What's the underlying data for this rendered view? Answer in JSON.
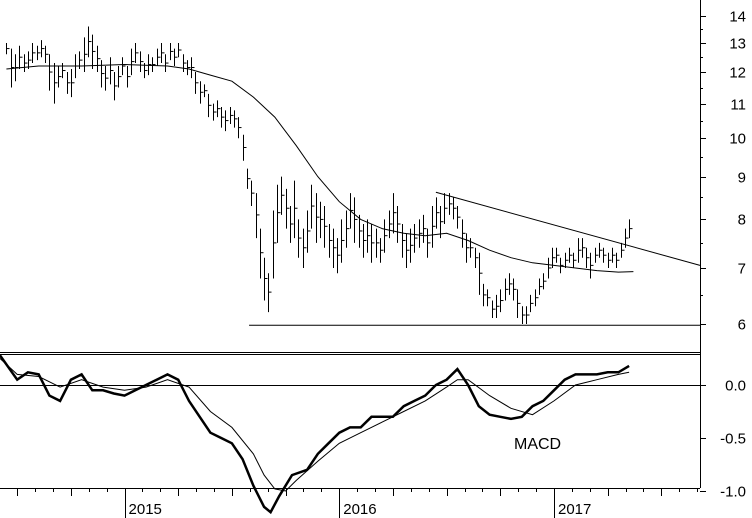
{
  "chart_data": [
    {
      "type": "ohlc",
      "panel": "price",
      "scale": "log",
      "ylim": [
        5.6,
        15
      ],
      "yticks": [
        6,
        7,
        8,
        9,
        10,
        11,
        12,
        13,
        14
      ],
      "x_labels": [
        "2015",
        "2016",
        "2017"
      ],
      "x_range": [
        2014.42,
        2017.68
      ],
      "bars": [
        [
          2014.45,
          12.6,
          13.0
        ],
        [
          2014.47,
          11.5,
          12.8
        ],
        [
          2014.49,
          11.7,
          12.6
        ],
        [
          2014.51,
          12.1,
          12.9
        ],
        [
          2014.53,
          12.0,
          12.6
        ],
        [
          2014.55,
          12.1,
          12.7
        ],
        [
          2014.57,
          12.3,
          13.0
        ],
        [
          2014.59,
          12.4,
          12.9
        ],
        [
          2014.61,
          12.5,
          13.1
        ],
        [
          2014.63,
          12.3,
          12.9
        ],
        [
          2014.65,
          11.4,
          12.6
        ],
        [
          2014.67,
          11.0,
          12.3
        ],
        [
          2014.69,
          11.5,
          12.2
        ],
        [
          2014.71,
          11.8,
          12.3
        ],
        [
          2014.73,
          11.3,
          12.0
        ],
        [
          2014.75,
          11.2,
          12.1
        ],
        [
          2014.77,
          11.8,
          12.6
        ],
        [
          2014.79,
          12.1,
          12.7
        ],
        [
          2014.81,
          12.0,
          13.2
        ],
        [
          2014.83,
          12.5,
          13.6
        ],
        [
          2014.85,
          12.1,
          13.3
        ],
        [
          2014.87,
          12.0,
          12.9
        ],
        [
          2014.89,
          11.5,
          12.4
        ],
        [
          2014.91,
          11.4,
          12.2
        ],
        [
          2014.93,
          11.6,
          12.5
        ],
        [
          2014.95,
          11.1,
          12.0
        ],
        [
          2014.97,
          11.5,
          12.2
        ],
        [
          2014.99,
          11.9,
          12.5
        ],
        [
          2015.01,
          11.5,
          12.2
        ],
        [
          2015.03,
          11.9,
          12.8
        ],
        [
          2015.05,
          12.3,
          13.0
        ],
        [
          2015.07,
          12.0,
          12.7
        ],
        [
          2015.09,
          11.8,
          12.3
        ],
        [
          2015.11,
          11.9,
          12.6
        ],
        [
          2015.13,
          12.0,
          12.5
        ],
        [
          2015.15,
          12.2,
          12.8
        ],
        [
          2015.17,
          12.3,
          13.0
        ],
        [
          2015.19,
          12.0,
          12.6
        ],
        [
          2015.21,
          12.4,
          13.0
        ],
        [
          2015.23,
          12.2,
          12.8
        ],
        [
          2015.25,
          12.5,
          13.0
        ],
        [
          2015.27,
          12.0,
          12.6
        ],
        [
          2015.29,
          11.9,
          12.4
        ],
        [
          2015.31,
          11.8,
          12.5
        ],
        [
          2015.33,
          11.3,
          12.0
        ],
        [
          2015.35,
          11.0,
          11.7
        ],
        [
          2015.37,
          11.2,
          11.6
        ],
        [
          2015.39,
          10.6,
          11.3
        ],
        [
          2015.41,
          10.5,
          11.0
        ],
        [
          2015.43,
          10.6,
          11.1
        ],
        [
          2015.45,
          10.3,
          10.9
        ],
        [
          2015.47,
          10.2,
          10.8
        ],
        [
          2015.49,
          10.4,
          10.9
        ],
        [
          2015.51,
          10.3,
          10.8
        ],
        [
          2015.53,
          10.0,
          10.6
        ],
        [
          2015.55,
          9.4,
          10.1
        ],
        [
          2015.57,
          8.7,
          9.2
        ],
        [
          2015.59,
          8.3,
          8.9
        ],
        [
          2015.61,
          7.6,
          8.6
        ],
        [
          2015.63,
          6.8,
          7.8
        ],
        [
          2015.65,
          6.4,
          7.2
        ],
        [
          2015.67,
          6.2,
          6.9
        ],
        [
          2015.69,
          6.8,
          8.2
        ],
        [
          2015.71,
          7.5,
          8.8
        ],
        [
          2015.73,
          8.1,
          9.0
        ],
        [
          2015.75,
          7.8,
          8.7
        ],
        [
          2015.77,
          7.5,
          8.3
        ],
        [
          2015.79,
          7.6,
          8.9
        ],
        [
          2015.81,
          7.2,
          8.0
        ],
        [
          2015.83,
          7.0,
          7.8
        ],
        [
          2015.85,
          7.3,
          8.2
        ],
        [
          2015.87,
          7.8,
          8.8
        ],
        [
          2015.89,
          7.5,
          8.6
        ],
        [
          2015.91,
          7.6,
          8.4
        ],
        [
          2015.93,
          7.4,
          8.3
        ],
        [
          2015.95,
          7.2,
          7.9
        ],
        [
          2015.97,
          7.0,
          7.8
        ],
        [
          2015.99,
          6.9,
          7.6
        ],
        [
          2016.01,
          7.1,
          8.0
        ],
        [
          2016.03,
          7.4,
          8.2
        ],
        [
          2016.05,
          7.8,
          8.6
        ],
        [
          2016.07,
          7.5,
          8.5
        ],
        [
          2016.09,
          7.4,
          8.1
        ],
        [
          2016.11,
          7.2,
          7.9
        ],
        [
          2016.13,
          7.3,
          8.0
        ],
        [
          2016.15,
          7.1,
          7.9
        ],
        [
          2016.17,
          7.2,
          7.8
        ],
        [
          2016.19,
          7.1,
          7.6
        ],
        [
          2016.21,
          7.3,
          8.0
        ],
        [
          2016.23,
          7.6,
          8.2
        ],
        [
          2016.25,
          7.7,
          8.6
        ],
        [
          2016.27,
          7.5,
          8.3
        ],
        [
          2016.29,
          7.2,
          7.9
        ],
        [
          2016.31,
          7.0,
          7.7
        ],
        [
          2016.33,
          7.1,
          7.8
        ],
        [
          2016.35,
          7.3,
          7.9
        ],
        [
          2016.37,
          7.4,
          8.0
        ],
        [
          2016.39,
          7.5,
          8.1
        ],
        [
          2016.41,
          7.2,
          7.8
        ],
        [
          2016.43,
          7.4,
          8.3
        ],
        [
          2016.45,
          7.8,
          8.5
        ],
        [
          2016.47,
          7.6,
          8.3
        ],
        [
          2016.49,
          7.9,
          8.6
        ],
        [
          2016.51,
          8.1,
          8.6
        ],
        [
          2016.53,
          8.0,
          8.5
        ],
        [
          2016.55,
          7.8,
          8.3
        ],
        [
          2016.57,
          7.4,
          8.0
        ],
        [
          2016.59,
          7.1,
          7.7
        ],
        [
          2016.61,
          7.2,
          7.6
        ],
        [
          2016.63,
          7.0,
          7.4
        ],
        [
          2016.65,
          6.5,
          7.3
        ],
        [
          2016.67,
          6.3,
          6.7
        ],
        [
          2016.69,
          6.3,
          6.6
        ],
        [
          2016.71,
          6.1,
          6.4
        ],
        [
          2016.73,
          6.1,
          6.5
        ],
        [
          2016.75,
          6.2,
          6.6
        ],
        [
          2016.77,
          6.4,
          6.8
        ],
        [
          2016.79,
          6.5,
          6.9
        ],
        [
          2016.81,
          6.4,
          6.8
        ],
        [
          2016.83,
          6.1,
          6.6
        ],
        [
          2016.85,
          6.0,
          6.3
        ],
        [
          2016.87,
          6.0,
          6.3
        ],
        [
          2016.89,
          6.2,
          6.5
        ],
        [
          2016.91,
          6.3,
          6.6
        ],
        [
          2016.93,
          6.5,
          6.8
        ],
        [
          2016.95,
          6.6,
          6.9
        ],
        [
          2016.97,
          6.8,
          7.2
        ],
        [
          2016.99,
          7.0,
          7.4
        ],
        [
          2017.01,
          7.1,
          7.4
        ],
        [
          2017.03,
          6.9,
          7.2
        ],
        [
          2017.05,
          7.0,
          7.3
        ],
        [
          2017.07,
          7.1,
          7.4
        ],
        [
          2017.09,
          7.0,
          7.3
        ],
        [
          2017.11,
          7.1,
          7.6
        ],
        [
          2017.13,
          7.2,
          7.6
        ],
        [
          2017.15,
          7.0,
          7.4
        ],
        [
          2017.17,
          6.8,
          7.3
        ],
        [
          2017.19,
          7.1,
          7.4
        ],
        [
          2017.21,
          7.2,
          7.5
        ],
        [
          2017.23,
          7.1,
          7.4
        ],
        [
          2017.25,
          7.0,
          7.3
        ],
        [
          2017.27,
          7.1,
          7.4
        ],
        [
          2017.29,
          7.0,
          7.3
        ],
        [
          2017.31,
          7.2,
          7.5
        ],
        [
          2017.33,
          7.4,
          7.8
        ],
        [
          2017.35,
          7.6,
          8.0
        ]
      ],
      "moving_average": [
        [
          2014.45,
          12.1
        ],
        [
          2014.6,
          12.2
        ],
        [
          2014.8,
          12.2
        ],
        [
          2015.0,
          12.25
        ],
        [
          2015.2,
          12.2
        ],
        [
          2015.3,
          12.1
        ],
        [
          2015.4,
          11.9
        ],
        [
          2015.5,
          11.7
        ],
        [
          2015.6,
          11.2
        ],
        [
          2015.7,
          10.6
        ],
        [
          2015.8,
          9.8
        ],
        [
          2015.9,
          9.0
        ],
        [
          2016.0,
          8.4
        ],
        [
          2016.1,
          8.0
        ],
        [
          2016.2,
          7.8
        ],
        [
          2016.3,
          7.7
        ],
        [
          2016.4,
          7.65
        ],
        [
          2016.5,
          7.7
        ],
        [
          2016.6,
          7.55
        ],
        [
          2016.7,
          7.35
        ],
        [
          2016.8,
          7.2
        ],
        [
          2016.9,
          7.1
        ],
        [
          2017.0,
          7.05
        ],
        [
          2017.1,
          7.0
        ],
        [
          2017.2,
          6.95
        ],
        [
          2017.3,
          6.92
        ],
        [
          2017.37,
          6.93
        ]
      ],
      "trendlines": [
        {
          "from": [
            2016.45,
            8.62
          ],
          "to": [
            2017.68,
            7.05
          ]
        },
        {
          "from": [
            2015.58,
            5.98
          ],
          "to": [
            2017.68,
            5.98
          ]
        }
      ]
    },
    {
      "type": "line",
      "panel": "indicator",
      "ylim": [
        -1.3,
        0.35
      ],
      "yticks": [
        -1.0,
        -0.5,
        0.0
      ],
      "ytick_labels": [
        "-1.0",
        "-0.5",
        "0.0"
      ],
      "zero_line": true,
      "annotation": "MACD",
      "series": [
        {
          "role": "macd",
          "x": [
            2014.42,
            2014.5,
            2014.55,
            2014.6,
            2014.65,
            2014.7,
            2014.75,
            2014.8,
            2014.85,
            2014.9,
            2014.95,
            2015.0,
            2015.05,
            2015.1,
            2015.15,
            2015.2,
            2015.25,
            2015.3,
            2015.35,
            2015.4,
            2015.45,
            2015.5,
            2015.55,
            2015.6,
            2015.65,
            2015.68,
            2015.72,
            2015.78,
            2015.85,
            2015.9,
            2015.95,
            2016.0,
            2016.05,
            2016.1,
            2016.15,
            2016.2,
            2016.25,
            2016.3,
            2016.35,
            2016.4,
            2016.45,
            2016.5,
            2016.55,
            2016.6,
            2016.65,
            2016.7,
            2016.75,
            2016.8,
            2016.85,
            2016.9,
            2016.95,
            2017.0,
            2017.05,
            2017.1,
            2017.15,
            2017.2,
            2017.25,
            2017.3,
            2017.35
          ],
          "values": [
            0.28,
            0.05,
            0.12,
            0.1,
            -0.1,
            -0.15,
            0.05,
            0.1,
            -0.05,
            -0.05,
            -0.08,
            -0.1,
            -0.05,
            0.0,
            0.05,
            0.1,
            0.05,
            -0.15,
            -0.3,
            -0.45,
            -0.5,
            -0.55,
            -0.7,
            -0.95,
            -1.15,
            -1.2,
            -1.05,
            -0.85,
            -0.8,
            -0.65,
            -0.55,
            -0.45,
            -0.4,
            -0.4,
            -0.3,
            -0.3,
            -0.3,
            -0.2,
            -0.15,
            -0.1,
            0.0,
            0.05,
            0.15,
            0.0,
            -0.2,
            -0.28,
            -0.3,
            -0.32,
            -0.3,
            -0.2,
            -0.15,
            -0.05,
            0.05,
            0.1,
            0.1,
            0.1,
            0.12,
            0.12,
            0.18
          ]
        },
        {
          "role": "signal",
          "x": [
            2014.42,
            2014.5,
            2014.6,
            2014.7,
            2014.8,
            2014.9,
            2015.0,
            2015.1,
            2015.2,
            2015.3,
            2015.4,
            2015.5,
            2015.6,
            2015.65,
            2015.7,
            2015.75,
            2015.8,
            2015.9,
            2016.0,
            2016.1,
            2016.2,
            2016.3,
            2016.4,
            2016.5,
            2016.55,
            2016.6,
            2016.7,
            2016.8,
            2016.9,
            2017.0,
            2017.1,
            2017.2,
            2017.3,
            2017.35
          ],
          "values": [
            0.25,
            0.1,
            0.08,
            -0.02,
            0.05,
            -0.02,
            -0.05,
            -0.02,
            0.05,
            -0.02,
            -0.25,
            -0.4,
            -0.65,
            -0.85,
            -0.98,
            -1.0,
            -0.9,
            -0.72,
            -0.55,
            -0.45,
            -0.35,
            -0.25,
            -0.15,
            -0.02,
            0.05,
            0.05,
            -0.1,
            -0.22,
            -0.28,
            -0.15,
            0.0,
            0.05,
            0.1,
            0.12
          ]
        }
      ]
    }
  ]
}
